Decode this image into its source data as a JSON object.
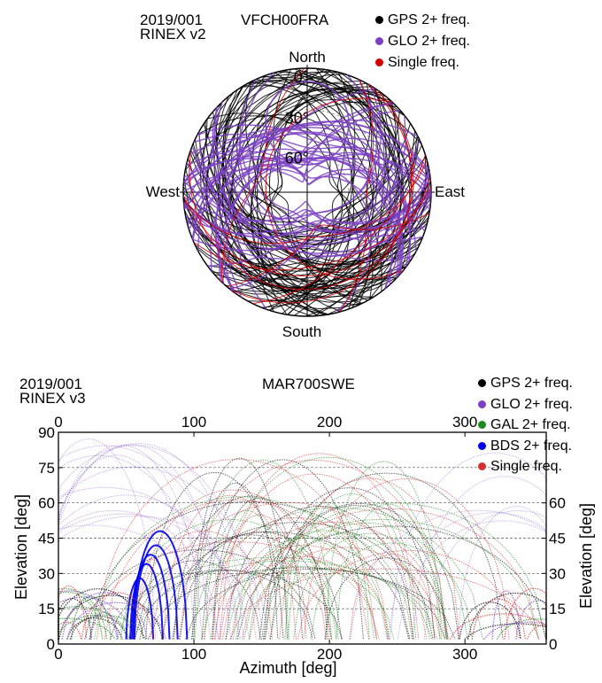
{
  "polar": {
    "date": "2019/001",
    "rinex": "RINEX v2",
    "station": "VFCH00FRA",
    "directions": {
      "north": "North",
      "south": "South",
      "east": "East",
      "west": "West"
    },
    "ring_labels": [
      "0°",
      "30°",
      "60°"
    ]
  },
  "rect": {
    "date": "2019/001",
    "rinex": "RINEX v3",
    "station": "MAR700SWE"
  },
  "chart_data": [
    {
      "type": "scatter",
      "subtype": "polar skyplot",
      "title": "VFCH00FRA",
      "series": [
        {
          "name": "GPS 2+ freq.",
          "color": "#000000"
        },
        {
          "name": "GLO 2+ freq.",
          "color": "#7b3fc4"
        },
        {
          "name": "Single freq.",
          "color": "#d40000"
        }
      ],
      "radial_ticks": [
        0,
        30,
        60
      ],
      "legend": "top-right"
    },
    {
      "type": "scatter",
      "subtype": "azimuth-elevation",
      "title": "MAR700SWE",
      "xlabel": "Azimuth [deg]",
      "ylabel": "Elevation [deg]",
      "xlim": [
        0,
        360
      ],
      "ylim": [
        0,
        90
      ],
      "x_ticks_bottom": [
        0,
        100,
        200,
        300
      ],
      "x_ticks_top": [
        0,
        100,
        200,
        300
      ],
      "y_ticks_left": [
        0,
        15,
        30,
        45,
        60,
        75,
        90
      ],
      "y_ticks_right": [
        0,
        15,
        30,
        45,
        60
      ],
      "grid": true,
      "series": [
        {
          "name": "GPS 2+ freq.",
          "color": "#000000"
        },
        {
          "name": "GLO 2+ freq.",
          "color": "#7b3fc4"
        },
        {
          "name": "GAL 2+ freq.",
          "color": "#1f8a1f"
        },
        {
          "name": "BDS 2+ freq.",
          "color": "#0000ee"
        },
        {
          "name": "Single freq.",
          "color": "#d43030"
        }
      ],
      "legend": "top-right"
    }
  ]
}
